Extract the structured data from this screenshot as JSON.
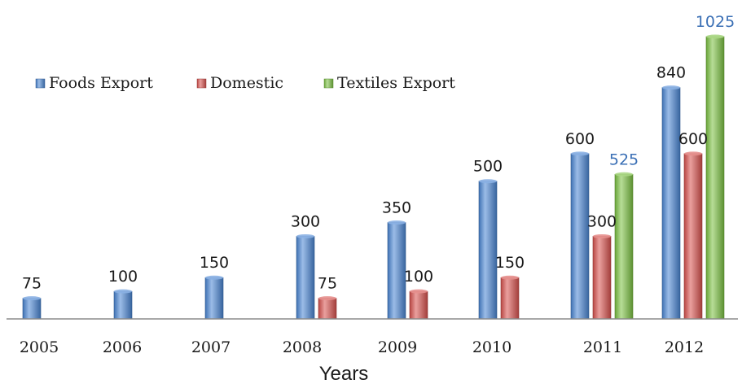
{
  "chart_data": {
    "type": "bar",
    "xlabel": "Years",
    "categories": [
      "2005",
      "2006",
      "2007",
      "2008",
      "2009",
      "2010",
      "2011",
      "2012"
    ],
    "series": [
      {
        "name": "Foods Export",
        "color": "#4a86d4",
        "values": [
          75,
          100,
          150,
          300,
          350,
          500,
          600,
          840
        ]
      },
      {
        "name": "Domestic",
        "color": "#d9524f",
        "values": [
          null,
          null,
          null,
          75,
          100,
          150,
          300,
          600
        ]
      },
      {
        "name": "Textiles Export",
        "color": "#7cc242",
        "values": [
          null,
          null,
          null,
          null,
          null,
          null,
          525,
          1025
        ]
      }
    ],
    "ylim": [
      0,
      1025
    ],
    "legend": "top-left",
    "grid": false,
    "data_label_colors": {
      "default": "#1a1a1a",
      "highlight": "#3a6fb5"
    }
  }
}
